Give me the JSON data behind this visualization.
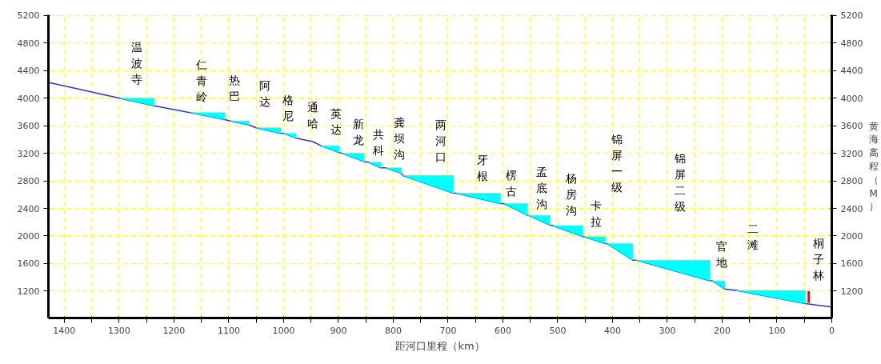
{
  "chart_data": {
    "type": "line",
    "xlabel": "距河口里程（km）",
    "y2label": "黄海高程（M）",
    "xlim": [
      1429,
      0
    ],
    "ylim": [
      810,
      5210
    ],
    "y2lim": [
      810,
      5210
    ],
    "xticks": [
      1400,
      {
        "value": 1350,
        "label": null
      },
      1300,
      {
        "value": 1250,
        "label": null
      },
      1200,
      {
        "value": 1150,
        "label": null
      },
      1100,
      {
        "value": 1050,
        "label": null
      },
      1000,
      {
        "value": 950,
        "label": null
      },
      900,
      {
        "value": 850,
        "label": null
      },
      800,
      {
        "value": 750,
        "label": null
      },
      700,
      {
        "value": 650,
        "label": null
      },
      600,
      {
        "value": 550,
        "label": null
      },
      500,
      {
        "value": 450,
        "label": null
      },
      400,
      {
        "value": 350,
        "label": null
      },
      300,
      {
        "value": 250,
        "label": null
      },
      200,
      {
        "value": 150,
        "label": null
      },
      100,
      {
        "value": 50,
        "label": null
      },
      0
    ],
    "yticks": [
      1200,
      1600,
      2000,
      2400,
      2800,
      3200,
      3600,
      4000,
      4400,
      4800,
      5200
    ],
    "y2ticks": [
      1200,
      1600,
      2000,
      2400,
      2800,
      3200,
      3600,
      4000,
      4400,
      4800,
      5200
    ],
    "grid": true,
    "series": [
      {
        "type": "area",
        "color": "#00ffff",
        "x": [
          1299,
          1236,
          null,
          1171,
          1107,
          null,
          1097,
          1063,
          null,
          1050,
          1005,
          null,
          1000,
          977,
          null,
          932,
          898,
          null,
          893,
          853,
          null,
          845,
          822,
          null,
          814,
          785,
          null,
          783,
          690,
          null,
          685,
          604,
          null,
          598,
          555,
          null,
          554,
          514,
          null,
          509,
          454,
          null,
          452,
          413,
          null,
          410,
          363,
          null,
          357,
          334,
          222,
          null,
          218,
          195,
          null,
          174,
          48
        ],
        "values": [
          4000,
          4000,
          null,
          3790,
          3790,
          null,
          3670,
          3670,
          null,
          3570,
          3570,
          null,
          3490,
          3490,
          null,
          3310,
          3310,
          null,
          3200,
          3200,
          null,
          3070,
          3070,
          null,
          2990,
          2990,
          null,
          2880,
          2880,
          null,
          2620,
          2620,
          null,
          2470,
          2470,
          null,
          2300,
          2300,
          null,
          2150,
          2150,
          null,
          1990,
          1990,
          null,
          1890,
          1890,
          null,
          1650,
          1650,
          1650,
          null,
          1350,
          1350,
          null,
          1210,
          1210
        ]
      },
      {
        "color": "#3333cc",
        "x": [
          1429,
          1299,
          1236,
          1171,
          1107,
          1097,
          1063,
          1050,
          1005,
          1000,
          977,
          947,
          937,
          932,
          898,
          893,
          853,
          845,
          822,
          814,
          785,
          783,
          690,
          685,
          604,
          598,
          555,
          554,
          514,
          509,
          454,
          452,
          413,
          410,
          363,
          357,
          334,
          222,
          218,
          195,
          174,
          48,
          0
        ],
        "values": [
          4230,
          4000,
          3890,
          3790,
          3690,
          3670,
          3610,
          3570,
          3490,
          3490,
          3420,
          3370,
          3330,
          3310,
          3210,
          3200,
          3080,
          3070,
          2990,
          2990,
          2910,
          2880,
          2620,
          2620,
          2470,
          2470,
          2300,
          2300,
          2160,
          2150,
          1990,
          1990,
          1890,
          1890,
          1650,
          1650,
          1600,
          1350,
          1350,
          1230,
          1210,
          1020,
          970
        ]
      },
      {
        "type": "line",
        "color": "#ff0000",
        "x": [
          42,
          42
        ],
        "values": [
          1030,
          1200
        ]
      }
    ],
    "annotations": [
      {
        "text": "温波寺",
        "x": 1236,
        "y": 3890
      },
      {
        "text": "仁青岭",
        "x": 1107,
        "y": 3690
      },
      {
        "text": "热巴",
        "x": 1063,
        "y": 3610
      },
      {
        "text": "阿达",
        "x": 1005,
        "y": 3490
      },
      {
        "text": "格尼",
        "x": 977,
        "y": 3420
      },
      {
        "text": "通哈",
        "x": 937,
        "y": 3330
      },
      {
        "text": "英达",
        "x": 898,
        "y": 3210
      },
      {
        "text": "新龙",
        "x": 853,
        "y": 3080
      },
      {
        "text": "共科",
        "x": 822,
        "y": 2990
      },
      {
        "text": "龚坝沟",
        "x": 785,
        "y": 2910
      },
      {
        "text": "两河口",
        "x": 690,
        "y": 2620
      },
      {
        "text": "牙根",
        "x": 604,
        "y": 2470
      },
      {
        "text": "楞古",
        "x": 555,
        "y": 2300
      },
      {
        "text": "孟底沟",
        "x": 514,
        "y": 2160
      },
      {
        "text": "杨房沟",
        "x": 454,
        "y": 1990
      },
      {
        "text": "卡拉",
        "x": 413,
        "y": 1890
      },
      "锦屏一级",
      "锦屏二级",
      {
        "text": "官地",
        "x": 195,
        "y": 1230
      },
      "二滩",
      {
        "text": "桐子林",
        "x": 42,
        "y": 1200
      }
    ]
  }
}
